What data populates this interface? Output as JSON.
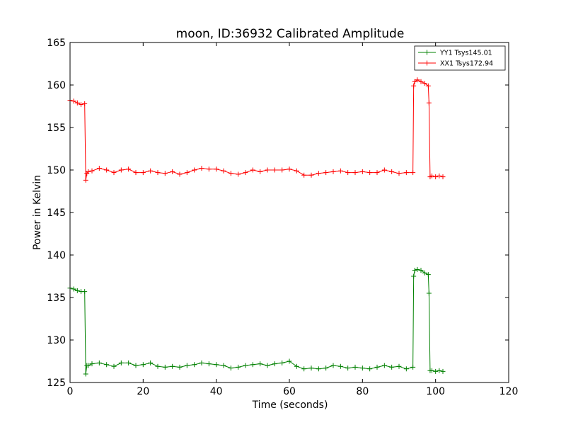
{
  "chart_data": {
    "type": "line",
    "title": "moon, ID:36932 Calibrated Amplitude",
    "xlabel": "Time (seconds)",
    "ylabel": "Power in Kelvin",
    "xlim": [
      0,
      120
    ],
    "ylim": [
      125,
      165
    ],
    "xticks": [
      "0",
      "20",
      "40",
      "60",
      "80",
      "100",
      "120"
    ],
    "yticks": [
      "125",
      "130",
      "135",
      "140",
      "145",
      "150",
      "155",
      "160",
      "165"
    ],
    "grid": false,
    "legend_position": "top-right",
    "series": [
      {
        "name": "YY1 Tsys145.01",
        "color": "#008000",
        "marker": "+",
        "x": [
          0,
          1,
          2,
          3,
          4,
          4.3,
          4.6,
          5,
          6,
          8,
          10,
          12,
          14,
          16,
          18,
          20,
          22,
          24,
          26,
          28,
          30,
          32,
          34,
          36,
          38,
          40,
          42,
          44,
          46,
          48,
          50,
          52,
          54,
          56,
          58,
          60,
          62,
          64,
          66,
          68,
          70,
          72,
          74,
          76,
          78,
          80,
          82,
          84,
          86,
          88,
          90,
          92,
          93.8,
          94,
          94.3,
          95,
          96,
          97,
          98,
          98.2,
          98.5,
          99,
          100,
          101,
          102
        ],
        "y": [
          136.1,
          136.0,
          135.8,
          135.7,
          135.7,
          126.0,
          127.0,
          127.0,
          127.2,
          127.3,
          127.1,
          126.9,
          127.3,
          127.3,
          127.0,
          127.1,
          127.3,
          126.9,
          126.8,
          126.9,
          126.8,
          127.0,
          127.1,
          127.3,
          127.2,
          127.1,
          127.0,
          126.7,
          126.8,
          127.0,
          127.1,
          127.2,
          127.0,
          127.2,
          127.3,
          127.5,
          126.9,
          126.6,
          126.7,
          126.6,
          126.7,
          127.0,
          126.9,
          126.7,
          126.8,
          126.7,
          126.6,
          126.8,
          127.0,
          126.8,
          126.9,
          126.6,
          126.8,
          137.5,
          138.2,
          138.3,
          138.2,
          137.9,
          137.7,
          135.5,
          126.4,
          126.4,
          126.3,
          126.4,
          126.3
        ]
      },
      {
        "name": "XX1 Tsys172.94",
        "color": "#ff0000",
        "marker": "+",
        "x": [
          0,
          1,
          2,
          3,
          4,
          4.3,
          4.6,
          5,
          6,
          8,
          10,
          12,
          14,
          16,
          18,
          20,
          22,
          24,
          26,
          28,
          30,
          32,
          34,
          36,
          38,
          40,
          42,
          44,
          46,
          48,
          50,
          52,
          54,
          56,
          58,
          60,
          62,
          64,
          66,
          68,
          70,
          72,
          74,
          76,
          78,
          80,
          82,
          84,
          86,
          88,
          90,
          92,
          93.8,
          94,
          94.3,
          95,
          96,
          97,
          98,
          98.2,
          98.5,
          99,
          100,
          101,
          102
        ],
        "y": [
          158.2,
          158.1,
          157.9,
          157.7,
          157.8,
          148.8,
          149.6,
          149.8,
          149.9,
          150.2,
          150.0,
          149.7,
          150.0,
          150.1,
          149.7,
          149.7,
          149.9,
          149.7,
          149.6,
          149.8,
          149.5,
          149.7,
          150.0,
          150.2,
          150.1,
          150.1,
          149.9,
          149.6,
          149.5,
          149.7,
          150.0,
          149.8,
          150.0,
          150.0,
          150.0,
          150.1,
          149.9,
          149.4,
          149.4,
          149.6,
          149.7,
          149.8,
          149.9,
          149.7,
          149.7,
          149.8,
          149.7,
          149.7,
          150.0,
          149.8,
          149.6,
          149.7,
          149.7,
          159.9,
          160.4,
          160.6,
          160.4,
          160.2,
          159.9,
          157.9,
          149.2,
          149.3,
          149.2,
          149.3,
          149.2
        ]
      }
    ]
  }
}
